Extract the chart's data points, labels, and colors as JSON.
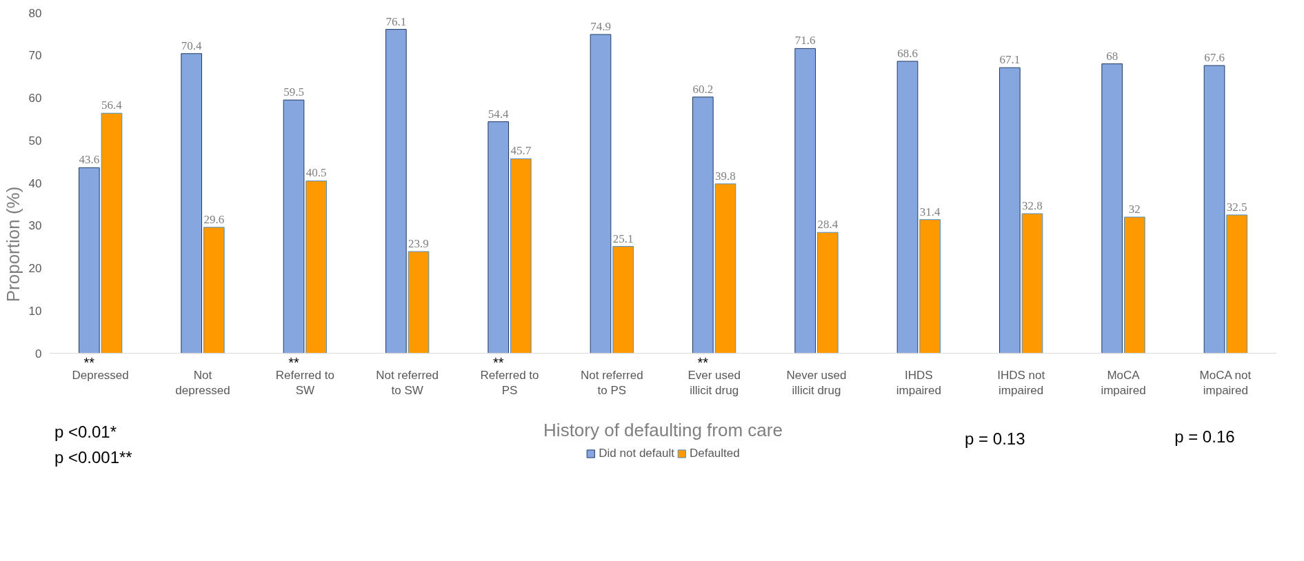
{
  "chart_data": {
    "type": "bar",
    "xlabel": "History of defaulting from care",
    "ylabel": "Proportion (%)",
    "categories": [
      "Depressed",
      "Not depressed",
      "Referred to SW",
      "Not referred to SW",
      "Referred to PS",
      "Not referred to PS",
      "Ever used illicit drug",
      "Never used illicit drug",
      "IHDS impaired",
      "IHDS not impaired",
      "MoCA impaired",
      "MoCA not impaired"
    ],
    "series": [
      {
        "name": "Did not default",
        "color": "#86a6df",
        "values": [
          43.6,
          70.4,
          59.5,
          76.1,
          54.4,
          74.9,
          60.2,
          71.6,
          68.6,
          67.1,
          68,
          67.6
        ]
      },
      {
        "name": "Defaulted",
        "color": "#ff9900",
        "values": [
          56.4,
          29.6,
          40.5,
          23.9,
          45.7,
          25.1,
          39.8,
          28.4,
          31.4,
          32.8,
          32,
          32.5
        ]
      }
    ],
    "ylim": [
      0,
      80
    ],
    "yticks": [
      0,
      10,
      20,
      30,
      40,
      50,
      60,
      70,
      80
    ],
    "data_labels": true,
    "grid": false,
    "legend": "bottom",
    "annotations": [
      {
        "text": "**",
        "x": "Depressed",
        "y": 0
      },
      {
        "text": "**",
        "x": "Referred to SW",
        "y": 0
      },
      {
        "text": "**",
        "x": "Referred to PS",
        "y": 0
      },
      {
        "text": "**",
        "x": "Ever used illicit drug",
        "y": 0
      },
      "p <0.01*",
      "p <0.001**",
      "p = 0.13",
      "p = 0.16"
    ]
  }
}
